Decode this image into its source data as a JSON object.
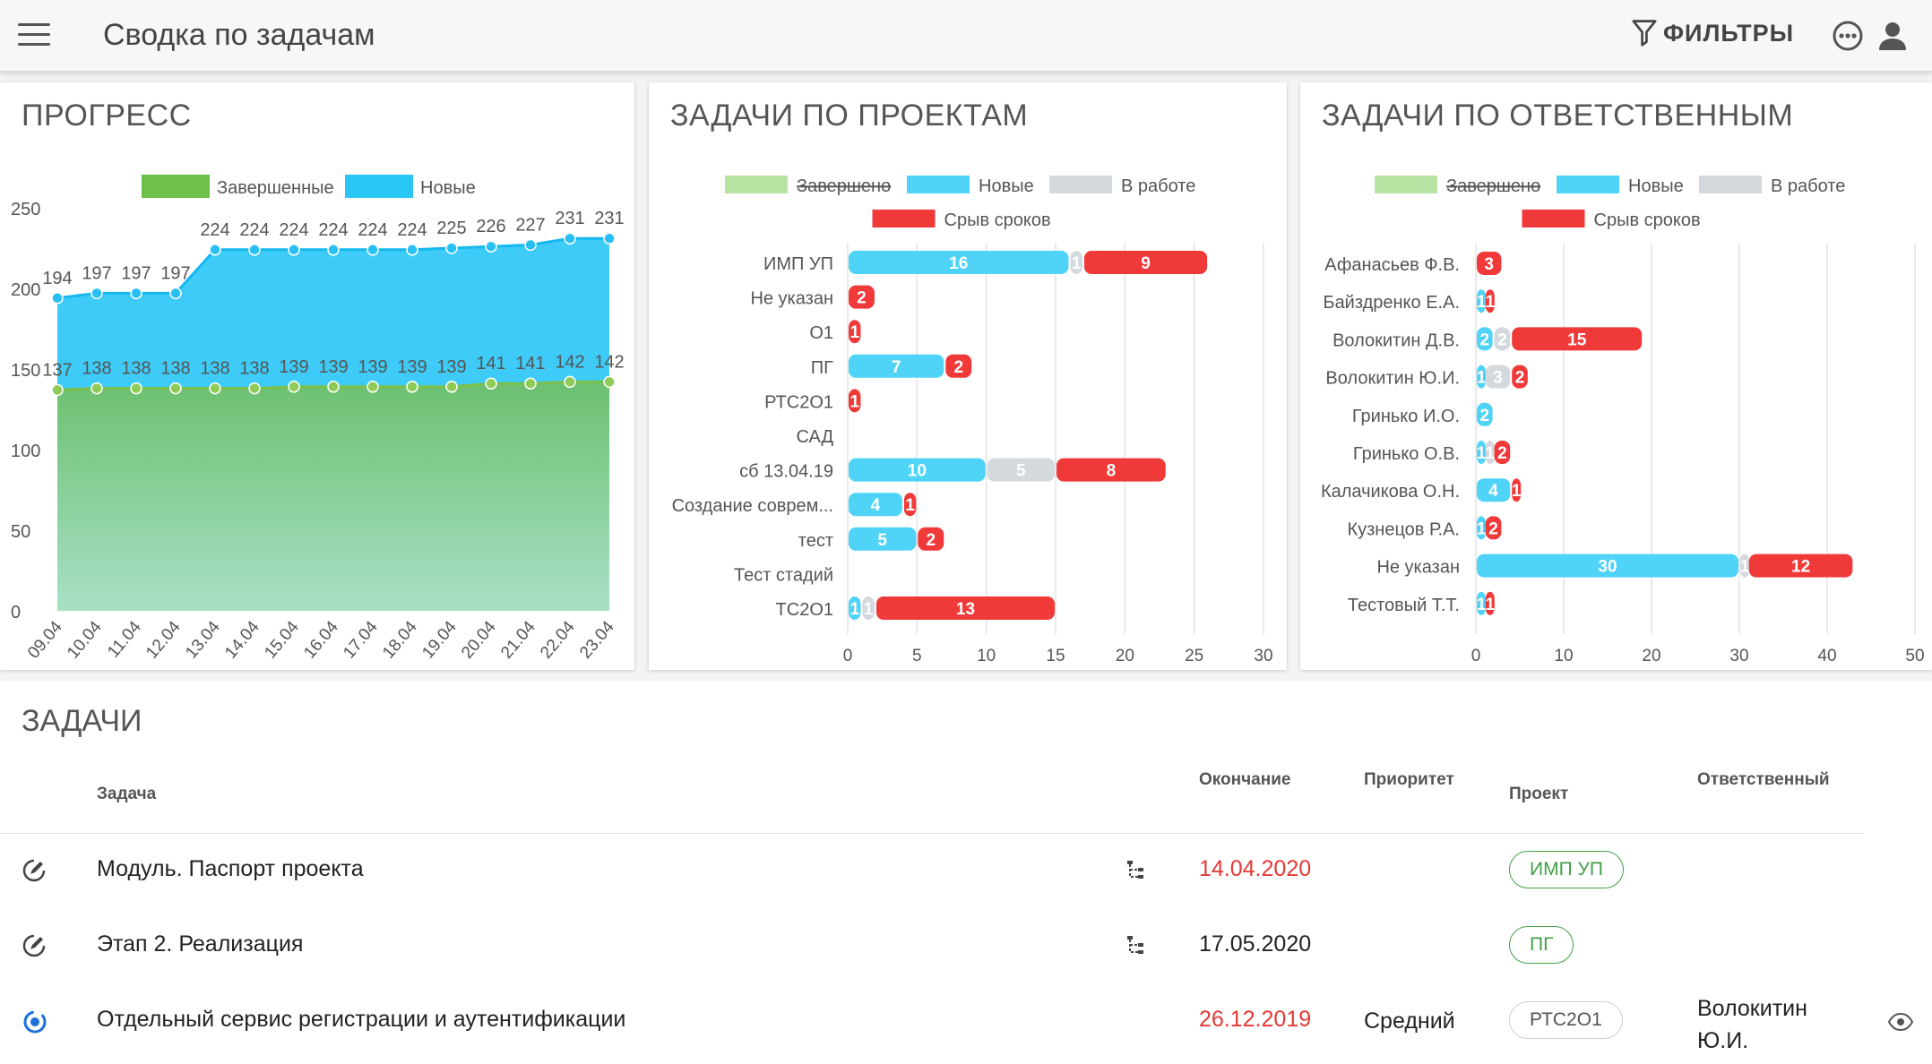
{
  "header": {
    "title": "Сводка по задачам",
    "filters_label": "ФИЛЬТРЫ",
    "menu_icon": "hamburger-menu-icon",
    "more_icon": "more-horizontal-icon",
    "user_icon": "account-icon"
  },
  "progress": {
    "title": "ПРОГРЕСС",
    "chart_data": {
      "type": "area",
      "categories": [
        "09.04",
        "10.04",
        "11.04",
        "12.04",
        "13.04",
        "14.04",
        "15.04",
        "16.04",
        "17.04",
        "18.04",
        "19.04",
        "20.04",
        "21.04",
        "22.04",
        "23.04"
      ],
      "series": [
        {
          "name": "Завершенные",
          "color": "#6fbf4b",
          "values": [
            137,
            138,
            138,
            138,
            138,
            138,
            139,
            139,
            139,
            139,
            139,
            141,
            141,
            142,
            142
          ]
        },
        {
          "name": "Новые",
          "color": "#29c7f5",
          "values": [
            194,
            197,
            197,
            197,
            224,
            224,
            224,
            224,
            224,
            224,
            225,
            226,
            227,
            231,
            231
          ]
        }
      ],
      "yticks": [
        0,
        50,
        100,
        150,
        200,
        250
      ],
      "ylim": [
        0,
        250
      ],
      "legend": "top"
    }
  },
  "by_project": {
    "title": "ЗАДАЧИ ПО ПРОЕКТАМ",
    "chart_data": {
      "type": "bar",
      "orientation": "horizontal",
      "stacked": true,
      "legend": [
        {
          "name": "Завершено",
          "color": "#a6dc8c",
          "hidden": true
        },
        {
          "name": "Новые",
          "color": "#4fd3f7"
        },
        {
          "name": "В работе",
          "color": "#d4d9de"
        },
        {
          "name": "Срыв сроков",
          "color": "#f03a3a"
        }
      ],
      "categories": [
        "ИМП УП",
        "Не указан",
        "О1",
        "ПГ",
        "РТС2О1",
        "САД",
        "сб 13.04.19",
        "Создание соврем...",
        "тест",
        "Тест стадий",
        "ТС2О1"
      ],
      "series": [
        {
          "name": "Новые",
          "values": [
            16,
            0,
            0,
            7,
            0,
            0,
            10,
            4,
            5,
            0,
            1
          ]
        },
        {
          "name": "В работе",
          "values": [
            1,
            0,
            0,
            0,
            0,
            0,
            5,
            0,
            0,
            0,
            1
          ]
        },
        {
          "name": "Срыв сроков",
          "values": [
            9,
            2,
            1,
            2,
            1,
            0,
            8,
            1,
            2,
            0,
            13
          ]
        }
      ],
      "xticks": [
        0,
        5,
        10,
        15,
        20,
        25,
        30
      ],
      "xlim": [
        0,
        30
      ]
    }
  },
  "by_assignee": {
    "title": "ЗАДАЧИ ПО ОТВЕТСТВЕННЫМ",
    "chart_data": {
      "type": "bar",
      "orientation": "horizontal",
      "stacked": true,
      "legend": [
        {
          "name": "Завершено",
          "color": "#a6dc8c",
          "hidden": true
        },
        {
          "name": "Новые",
          "color": "#4fd3f7"
        },
        {
          "name": "В работе",
          "color": "#d4d9de"
        },
        {
          "name": "Срыв сроков",
          "color": "#f03a3a"
        }
      ],
      "categories": [
        "Афанасьев Ф.В.",
        "Байздренко Е.А.",
        "Волокитин Д.В.",
        "Волокитин Ю.И.",
        "Гринько И.О.",
        "Гринько О.В.",
        "Калачикова О.Н.",
        "Кузнецов Р.А.",
        "Не указан",
        "Тестовый Т.Т."
      ],
      "series": [
        {
          "name": "Новые",
          "values": [
            0,
            1,
            2,
            1,
            2,
            1,
            4,
            1,
            30,
            1
          ]
        },
        {
          "name": "В работе",
          "values": [
            0,
            0,
            2,
            3,
            0,
            1,
            0,
            0,
            1,
            0
          ]
        },
        {
          "name": "Срыв сроков",
          "values": [
            3,
            1,
            15,
            2,
            0,
            2,
            1,
            2,
            12,
            1
          ]
        }
      ],
      "xticks": [
        0,
        10,
        20,
        30,
        40,
        50
      ],
      "xlim": [
        0,
        50
      ]
    }
  },
  "tasks": {
    "title": "ЗАДАЧИ",
    "columns": {
      "task": "Задача",
      "deadline": "Окончание",
      "priority": "Приоритет",
      "project": "Проект",
      "assignee": "Ответственный"
    },
    "rows": [
      {
        "name": "Модуль. Паспорт проекта",
        "deadline": "14.04.2020",
        "deadline_color": "#e53935",
        "priority": "",
        "project": "ИМП УП",
        "project_color": "#43a047",
        "assignee": "",
        "status_icon": "edit-circle-icon",
        "has_tree": true
      },
      {
        "name": "Этап 2. Реализация",
        "deadline": "17.05.2020",
        "deadline_color": "#222222",
        "priority": "",
        "project": "ПГ",
        "project_color": "#43a047",
        "assignee": "",
        "status_icon": "edit-circle-icon",
        "has_tree": true
      },
      {
        "name": "Отдельный сервис регистрации и аутентификации",
        "deadline": "26.12.2019",
        "deadline_color": "#e53935",
        "priority": "Средний",
        "project": "РТС2О1",
        "project_color": "#555555",
        "assignee": "Волокитин Ю.И.",
        "status_icon": "in-progress-icon",
        "has_tree": false
      }
    ]
  }
}
